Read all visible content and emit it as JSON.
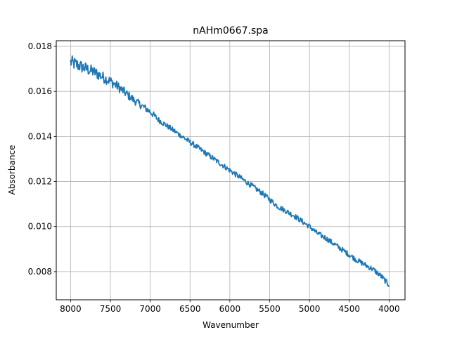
{
  "chart_data": {
    "type": "line",
    "title": "nAHm0667.spa",
    "xlabel": "Wavenumber",
    "ylabel": "Absorbance",
    "xlim": [
      8180,
      3800
    ],
    "ylim": [
      0.00675,
      0.01825
    ],
    "x_inverted": true,
    "grid": true,
    "legend": "none",
    "xticks": [
      8000,
      7500,
      7000,
      6500,
      6000,
      5500,
      5000,
      4500,
      4000
    ],
    "xtick_labels": [
      "8000",
      "7500",
      "7000",
      "6500",
      "6000",
      "5500",
      "5000",
      "4500",
      "4000"
    ],
    "yticks": [
      0.008,
      0.01,
      0.012,
      0.014,
      0.016,
      0.018
    ],
    "ytick_labels": [
      "0.008",
      "0.010",
      "0.012",
      "0.014",
      "0.016",
      "0.018"
    ],
    "series": [
      {
        "color": "#1f77b4",
        "noise": 0.00012,
        "x": [
          8000,
          7900,
          7800,
          7700,
          7600,
          7500,
          7400,
          7300,
          7200,
          7100,
          7000,
          6900,
          6800,
          6700,
          6600,
          6500,
          6400,
          6300,
          6200,
          6100,
          6000,
          5900,
          5800,
          5700,
          5600,
          5500,
          5400,
          5300,
          5200,
          5100,
          5000,
          4900,
          4800,
          4700,
          4600,
          4500,
          4400,
          4300,
          4200,
          4100,
          4000
        ],
        "y": [
          0.0173,
          0.01715,
          0.017,
          0.01685,
          0.01665,
          0.01645,
          0.0162,
          0.0159,
          0.0156,
          0.01535,
          0.0151,
          0.01475,
          0.0145,
          0.01425,
          0.014,
          0.01375,
          0.0135,
          0.01325,
          0.013,
          0.01275,
          0.0125,
          0.01225,
          0.012,
          0.01175,
          0.0115,
          0.0112,
          0.0109,
          0.0107,
          0.0105,
          0.01025,
          0.01,
          0.0097,
          0.0095,
          0.00925,
          0.009,
          0.00875,
          0.0085,
          0.0083,
          0.0081,
          0.0078,
          0.0074
        ]
      }
    ]
  }
}
